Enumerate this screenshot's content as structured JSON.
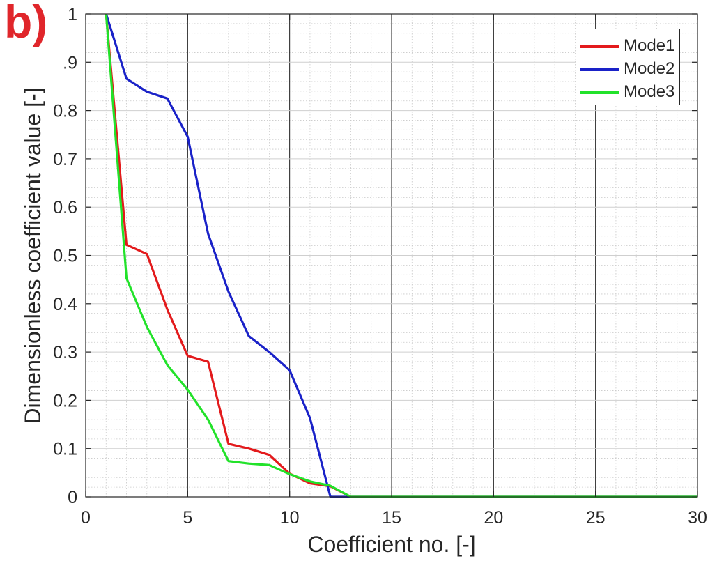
{
  "panel_label": "b)",
  "colors": {
    "Mode1": "#e31a1c",
    "Mode2": "#1a22c8",
    "Mode3": "#22e22a"
  },
  "chart_data": {
    "type": "line",
    "title": "",
    "xlabel": "Coefficient no. [-]",
    "ylabel": "Dimensionless coefficient value [-]",
    "xlim": [
      0,
      30
    ],
    "ylim": [
      0,
      1
    ],
    "xticks": [
      0,
      5,
      10,
      15,
      20,
      25,
      30
    ],
    "yticks": [
      0,
      0.1,
      0.2,
      0.3,
      0.4,
      0.5,
      0.6,
      0.7,
      0.8,
      0.9,
      1
    ],
    "xtick_labels": [
      "0",
      "5",
      "10",
      "15",
      "20",
      "25",
      "30"
    ],
    "ytick_labels": [
      "0",
      "0.1",
      "0.2",
      "0.3",
      "0.4",
      "0.5",
      "0.6",
      "0.7",
      "0.8",
      ".9",
      "1"
    ],
    "grid": true,
    "minor_grid": true,
    "legend_position": "top-right",
    "x": [
      1,
      2,
      3,
      4,
      5,
      6,
      7,
      8,
      9,
      10,
      11,
      12,
      13,
      14,
      15,
      16,
      17,
      18,
      19,
      20,
      21,
      22,
      23,
      24,
      25,
      26,
      27,
      28,
      29,
      30
    ],
    "series": [
      {
        "name": "Mode1",
        "color": "#e31a1c",
        "values": [
          1,
          0.522,
          0.503,
          0.388,
          0.292,
          0.28,
          0.11,
          0.1,
          0.087,
          0.048,
          0.028,
          0.022,
          0,
          0,
          0,
          0,
          0,
          0,
          0,
          0,
          0,
          0,
          0,
          0,
          0,
          0,
          0,
          0,
          0,
          0
        ]
      },
      {
        "name": "Mode2",
        "color": "#1a22c8",
        "values": [
          1,
          0.866,
          0.839,
          0.825,
          0.746,
          0.545,
          0.425,
          0.333,
          0.3,
          0.262,
          0.163,
          0,
          0,
          0,
          0,
          0,
          0,
          0,
          0,
          0,
          0,
          0,
          0,
          0,
          0,
          0,
          0,
          0,
          0,
          0
        ]
      },
      {
        "name": "Mode3",
        "color": "#22e22a",
        "values": [
          1,
          0.453,
          0.352,
          0.273,
          0.222,
          0.16,
          0.074,
          0.069,
          0.066,
          0.047,
          0.032,
          0.023,
          0,
          0,
          0,
          0,
          0,
          0,
          0,
          0,
          0,
          0,
          0,
          0,
          0,
          0,
          0,
          0,
          0,
          0
        ]
      }
    ]
  }
}
